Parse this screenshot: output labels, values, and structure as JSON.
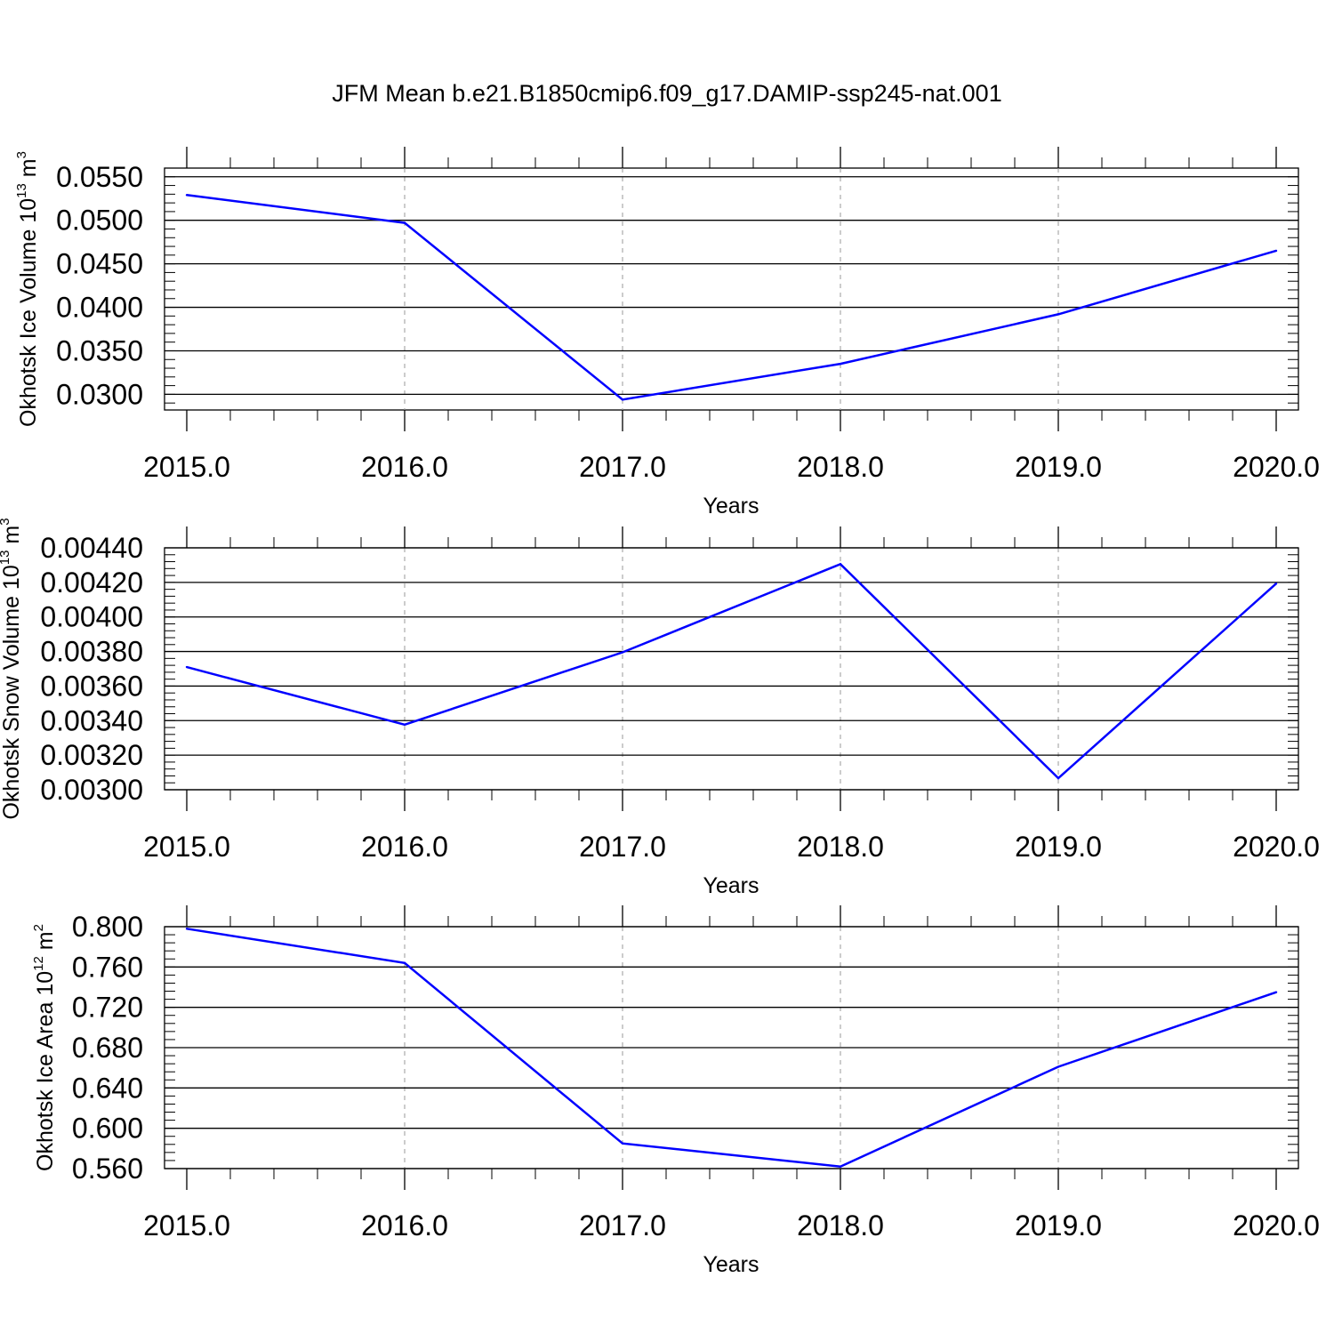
{
  "figure": {
    "title": "JFM Mean b.e21.B1850cmip6.f09_g17.DAMIP-ssp245-nat.001",
    "line_color": "#0000ff",
    "grid_color": "#999999"
  },
  "chart_data": [
    {
      "type": "line",
      "xlabel": "Years",
      "ylabel": {
        "text": "Okhotsk Ice Volume 10",
        "exp": "13",
        "unit_text": " m",
        "unit_exp": "3"
      },
      "x": [
        2015,
        2016,
        2017,
        2018,
        2019,
        2020
      ],
      "series": [
        {
          "values": [
            0.0529,
            0.0497,
            0.0294,
            0.0335,
            0.0392,
            0.0465
          ]
        }
      ],
      "xlim": [
        2015,
        2020
      ],
      "ylim": [
        0.0282,
        0.056
      ],
      "xticks": [
        "2015.0",
        "2016.0",
        "2017.0",
        "2018.0",
        "2019.0",
        "2020.0"
      ],
      "yticks": [
        0.03,
        0.035,
        0.04,
        0.045,
        0.05,
        0.055
      ],
      "ytick_labels": [
        "0.0300",
        "0.0350",
        "0.0400",
        "0.0450",
        "0.0500",
        "0.0550"
      ],
      "y_minor_step": 0.001,
      "grid": "vertical-dashed"
    },
    {
      "type": "line",
      "xlabel": "Years",
      "ylabel": {
        "text": "Okhotsk Snow Volume 10",
        "exp": "13",
        "unit_text": " m",
        "unit_exp": "3"
      },
      "x": [
        2015,
        2016,
        2017,
        2018,
        2019,
        2020
      ],
      "series": [
        {
          "values": [
            0.00371,
            0.003377,
            0.003795,
            0.004306,
            0.003067,
            0.004193
          ]
        }
      ],
      "xlim": [
        2015,
        2020
      ],
      "ylim": [
        0.003,
        0.0044
      ],
      "xticks": [
        "2015.0",
        "2016.0",
        "2017.0",
        "2018.0",
        "2019.0",
        "2020.0"
      ],
      "yticks": [
        0.003,
        0.0032,
        0.0034,
        0.0036,
        0.0038,
        0.004,
        0.0042,
        0.0044
      ],
      "ytick_labels": [
        "0.00300",
        "0.00320",
        "0.00340",
        "0.00360",
        "0.00380",
        "0.00400",
        "0.00420",
        "0.00440"
      ],
      "y_minor_step": 4e-05,
      "grid": "vertical-dashed"
    },
    {
      "type": "line",
      "xlabel": "Years",
      "ylabel": {
        "text": "Okhotsk Ice Area 10",
        "exp": "12",
        "unit_text": " m",
        "unit_exp": "2"
      },
      "x": [
        2015,
        2016,
        2017,
        2018,
        2019,
        2020
      ],
      "series": [
        {
          "values": [
            0.798,
            0.764,
            0.585,
            0.562,
            0.661,
            0.735
          ]
        }
      ],
      "xlim": [
        2015,
        2020
      ],
      "ylim": [
        0.56,
        0.8
      ],
      "xticks": [
        "2015.0",
        "2016.0",
        "2017.0",
        "2018.0",
        "2019.0",
        "2020.0"
      ],
      "yticks": [
        0.56,
        0.6,
        0.64,
        0.68,
        0.72,
        0.76,
        0.8
      ],
      "ytick_labels": [
        "0.560",
        "0.600",
        "0.640",
        "0.680",
        "0.720",
        "0.760",
        "0.800"
      ],
      "y_minor_step": 0.008,
      "grid": "vertical-dashed"
    }
  ]
}
